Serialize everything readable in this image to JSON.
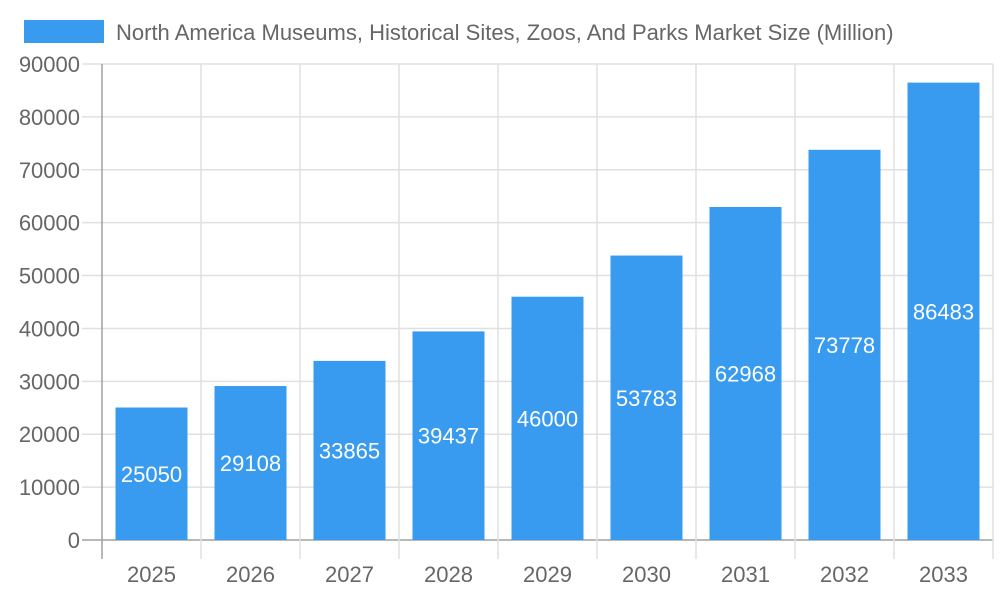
{
  "chart_data": {
    "type": "bar",
    "title": "",
    "xlabel": "",
    "ylabel": "",
    "categories": [
      "2025",
      "2026",
      "2027",
      "2028",
      "2029",
      "2030",
      "2031",
      "2032",
      "2033"
    ],
    "series": [
      {
        "name": "North America Museums, Historical Sites, Zoos, And Parks Market Size (Million)",
        "values": [
          25050,
          29108,
          33865,
          39437,
          46000,
          53783,
          62968,
          73778,
          86483
        ]
      }
    ],
    "ylim": [
      0,
      90000
    ],
    "yticks": [
      0,
      10000,
      20000,
      30000,
      40000,
      50000,
      60000,
      70000,
      80000,
      90000
    ],
    "grid": true,
    "legend": "top",
    "data_labels": true,
    "colors": {
      "bar": "#389bef",
      "text": "#666666",
      "grid": "#e0e0e0",
      "axis": "#a0a0a0",
      "label": "#ffffff"
    }
  }
}
